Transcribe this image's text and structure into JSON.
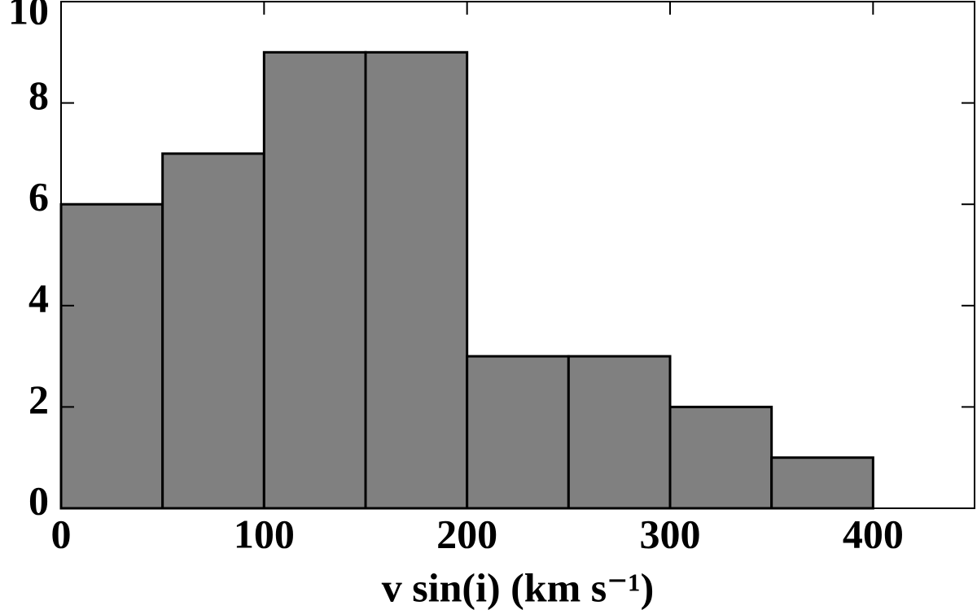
{
  "chart_data": {
    "type": "histogram",
    "xlabel": "v sin(i) (km s⁻¹)",
    "bins": [
      0,
      50,
      100,
      150,
      200,
      250,
      300,
      350,
      400,
      450
    ],
    "counts": [
      6,
      7,
      9,
      9,
      3,
      3,
      2,
      1,
      0
    ],
    "color": "#808080",
    "xlim": [
      0,
      450
    ],
    "xticks": [
      0,
      100,
      200,
      300,
      400
    ],
    "ylim": [
      0,
      10
    ],
    "yticks": [
      0,
      2,
      4,
      6,
      8,
      10
    ]
  }
}
